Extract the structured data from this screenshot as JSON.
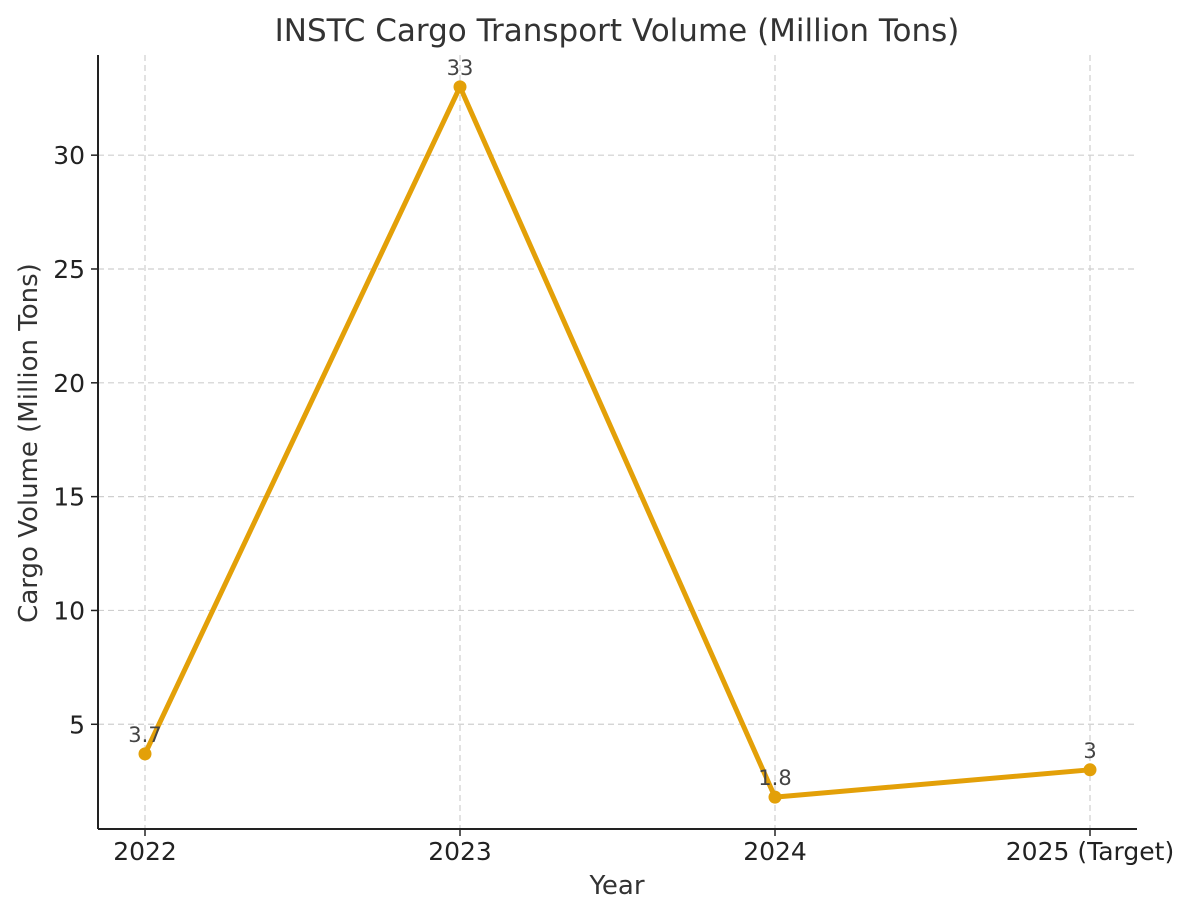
{
  "chart_data": {
    "type": "line",
    "title": "INSTC Cargo Transport Volume (Million Tons)",
    "xlabel": "Year",
    "ylabel": "Cargo Volume (Million Tons)",
    "categories": [
      "2022",
      "2023",
      "2024",
      "2025 (Target)"
    ],
    "series": [
      {
        "name": "Cargo Volume",
        "values": [
          3.7,
          33,
          1.8,
          3
        ],
        "labels": [
          "3.7",
          "33",
          "1.8",
          "3"
        ],
        "color": "#e3a008"
      }
    ],
    "ylim": [
      0.4,
      34.4
    ],
    "yticks": [
      5,
      10,
      15,
      20,
      25,
      30
    ],
    "ytick_labels": [
      "5",
      "10",
      "15",
      "20",
      "25",
      "30"
    ],
    "grid": true
  }
}
